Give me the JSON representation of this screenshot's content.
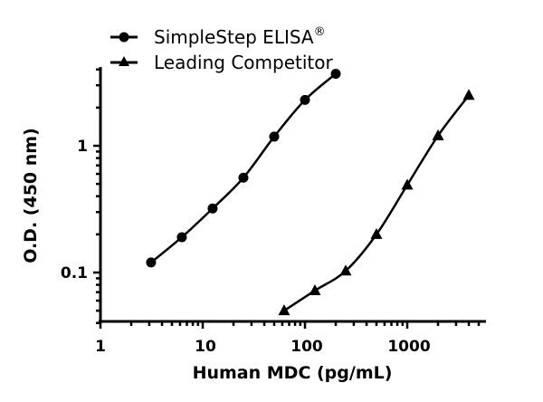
{
  "chart_data": {
    "type": "scatter",
    "title": "",
    "xlabel": "Human MDC (pg/mL)",
    "ylabel": "O.D. (450 nm)",
    "xscale": "log",
    "yscale": "log",
    "xlim": [
      1,
      5000
    ],
    "ylim": [
      0.04,
      4
    ],
    "xticks": [
      "1",
      "10",
      "100",
      "1000"
    ],
    "yticks": [
      "0.1",
      "1"
    ],
    "grid": false,
    "legend_position": "top-left",
    "series": [
      {
        "name": "SimpleStep ELISA®",
        "marker": "circle",
        "line": "fitted curve",
        "x": [
          3.125,
          6.25,
          12.5,
          25,
          50,
          100,
          200
        ],
        "y": [
          0.12,
          0.19,
          0.32,
          0.56,
          1.18,
          2.3,
          3.7
        ]
      },
      {
        "name": "Leading Competitor",
        "marker": "triangle",
        "line": "fitted curve",
        "x": [
          62.5,
          125,
          250,
          500,
          1000,
          2000,
          4000
        ],
        "y": [
          0.05,
          0.072,
          0.103,
          0.2,
          0.49,
          1.2,
          2.5
        ]
      }
    ]
  },
  "legend": {
    "item1": "SimpleStep ELISA",
    "item1_sup": "®",
    "item2": "Leading Competitor"
  },
  "axes": {
    "xlabel": "Human MDC (pg/mL)",
    "ylabel": "O.D. (450 nm)",
    "xtick_1": "1",
    "xtick_10": "10",
    "xtick_100": "100",
    "xtick_1000": "1000",
    "ytick_1": "1",
    "ytick_01": "0.1"
  }
}
